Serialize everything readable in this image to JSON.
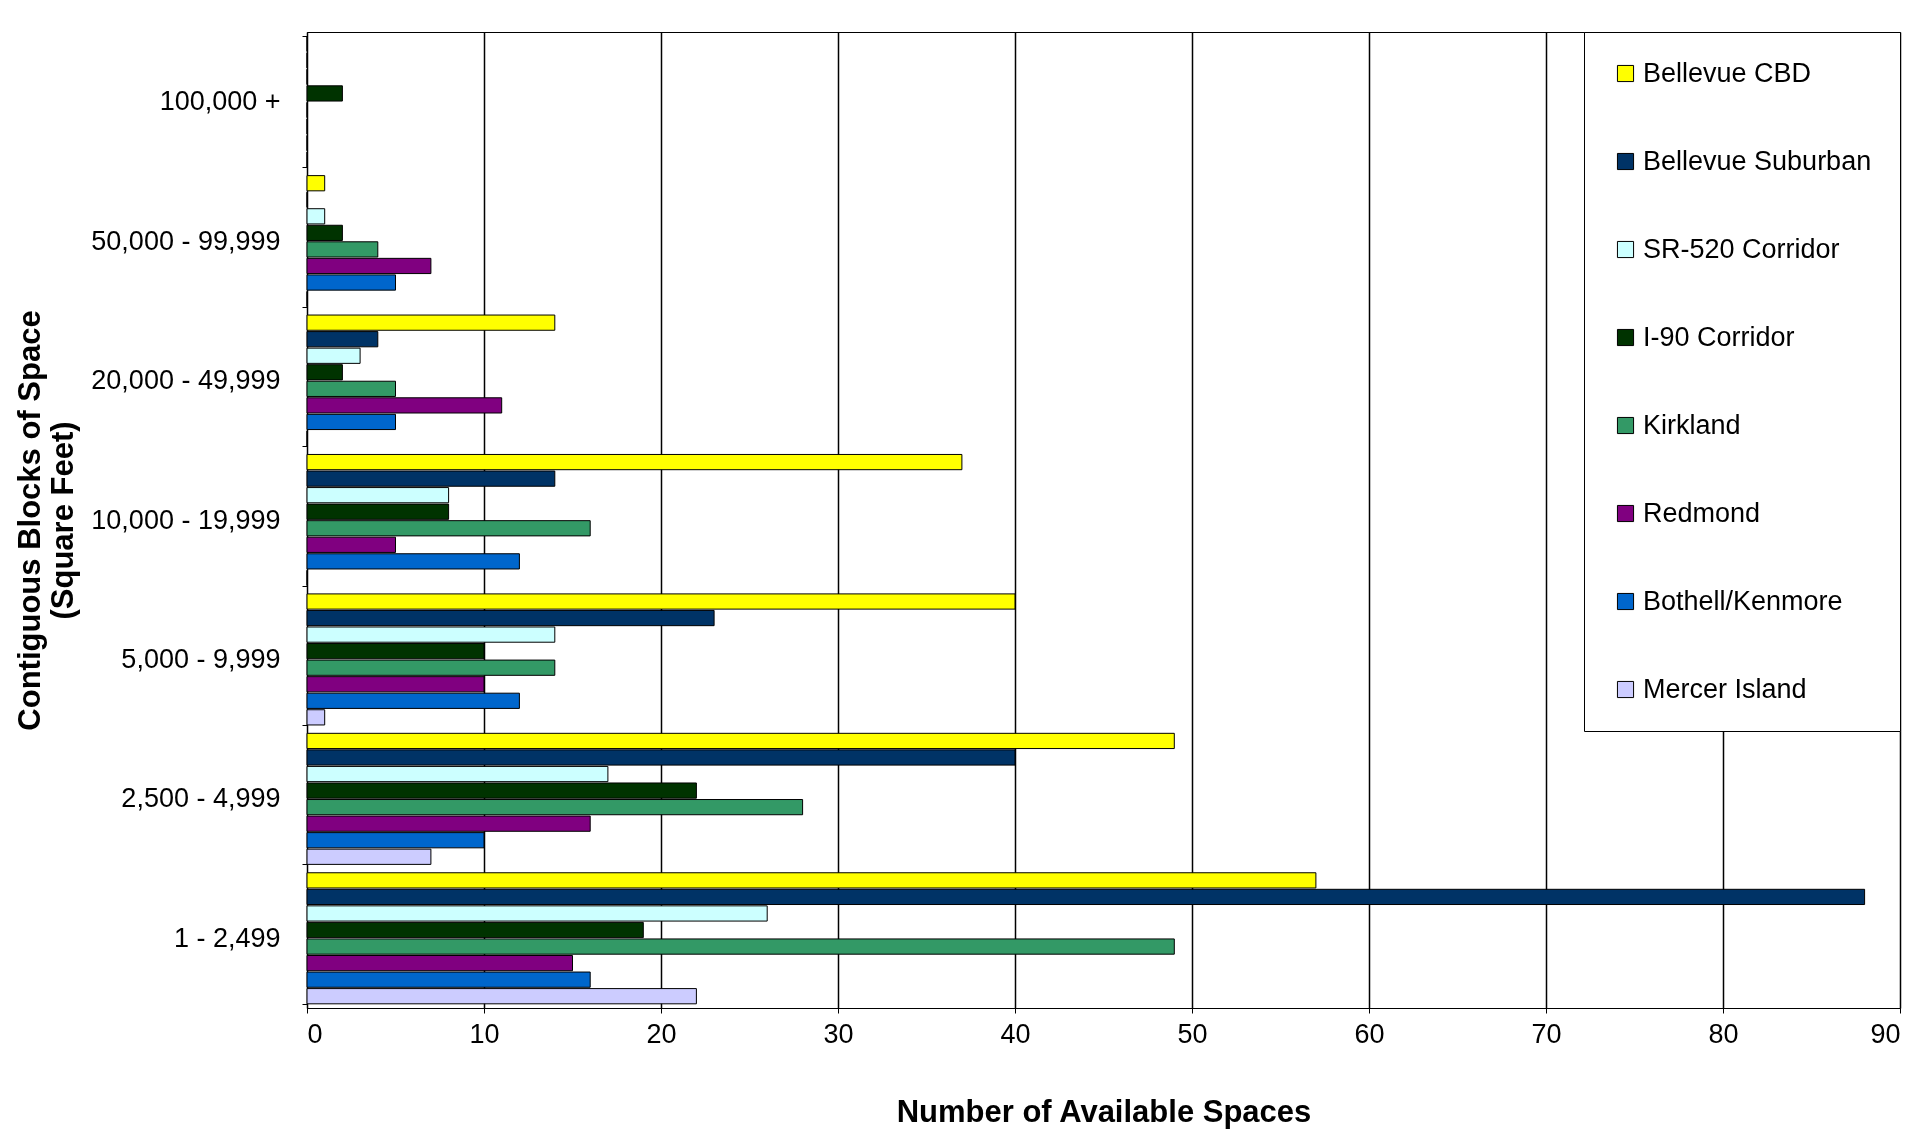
{
  "chart_data": {
    "type": "bar",
    "orientation": "horizontal",
    "xlabel": "Number of Available Spaces",
    "ylabel": "Contiguous Blocks of Space\n(Square Feet)",
    "categories": [
      "100,000 +",
      "50,000 - 99,999",
      "20,000 - 49,999",
      "10,000 - 19,999",
      "5,000 - 9,999",
      "2,500 - 4,999",
      "1 - 2,499"
    ],
    "series": [
      {
        "name": "Bellevue CBD",
        "color": "#ffff00",
        "values": [
          0,
          1,
          14,
          37,
          40,
          49,
          57
        ]
      },
      {
        "name": "Bellevue Suburban",
        "color": "#003366",
        "values": [
          0,
          0,
          4,
          14,
          23,
          40,
          88
        ]
      },
      {
        "name": "SR-520 Corridor",
        "color": "#ccffff",
        "values": [
          0,
          1,
          3,
          8,
          14,
          17,
          26
        ]
      },
      {
        "name": "I-90 Corridor",
        "color": "#003300",
        "values": [
          2,
          2,
          2,
          8,
          10,
          22,
          19
        ]
      },
      {
        "name": "Kirkland",
        "color": "#339966",
        "values": [
          0,
          4,
          5,
          16,
          14,
          28,
          49
        ]
      },
      {
        "name": "Redmond",
        "color": "#800080",
        "values": [
          0,
          7,
          11,
          5,
          10,
          16,
          15
        ]
      },
      {
        "name": "Bothell/Kenmore",
        "color": "#0066cc",
        "values": [
          0,
          5,
          5,
          12,
          12,
          10,
          16
        ]
      },
      {
        "name": "Mercer Island",
        "color": "#ccccff",
        "values": [
          0,
          0,
          0,
          0,
          1,
          7,
          22
        ]
      }
    ],
    "xlim": [
      0,
      90
    ],
    "xticks": [
      0,
      10,
      20,
      30,
      40,
      50,
      60,
      70,
      80,
      90
    ],
    "grid": "x",
    "legend": "top right"
  }
}
